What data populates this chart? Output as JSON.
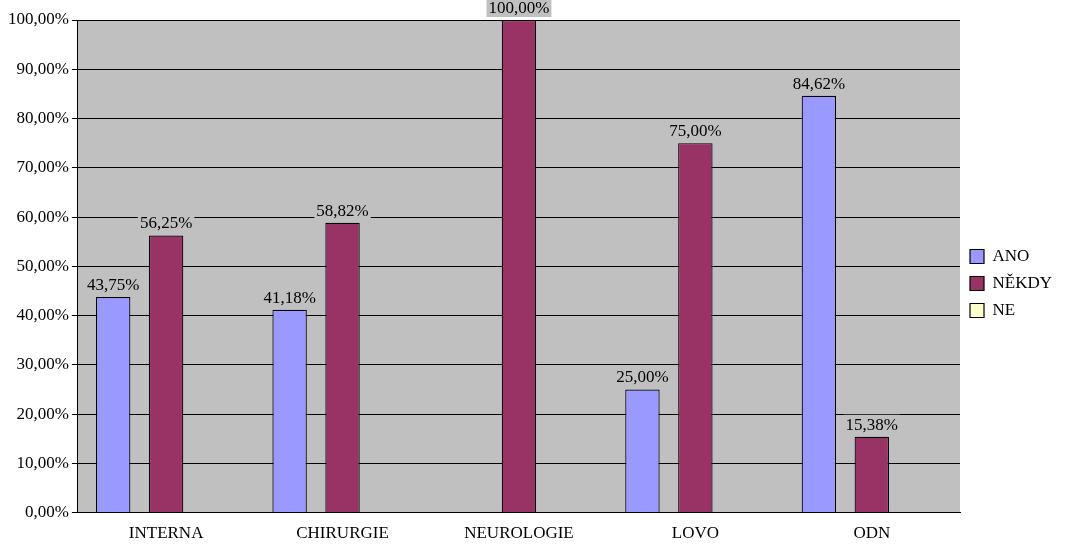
{
  "chart_data": {
    "type": "bar",
    "categories": [
      "INTERNA",
      "CHIRURGIE",
      "NEUROLOGIE",
      "LOVO",
      "ODN"
    ],
    "series": [
      {
        "name": "ANO",
        "color": "#9999ff",
        "values": [
          43.75,
          41.18,
          null,
          25.0,
          84.62
        ],
        "value_labels": [
          "43,75%",
          "41,18%",
          null,
          "25,00%",
          "84,62%"
        ]
      },
      {
        "name": "NĚKDY",
        "color": "#993366",
        "values": [
          56.25,
          58.82,
          100.0,
          75.0,
          15.38
        ],
        "value_labels": [
          "56,25%",
          "58,82%",
          "100,00%",
          "75,00%",
          "15,38%"
        ]
      },
      {
        "name": "NE",
        "color": "#ffffcc",
        "values": [
          null,
          null,
          null,
          null,
          null
        ]
      }
    ],
    "ylim": [
      0,
      100
    ],
    "yticks": [
      {
        "value": 0,
        "label": "0,00%"
      },
      {
        "value": 10,
        "label": "10,00%"
      },
      {
        "value": 20,
        "label": "20,00%"
      },
      {
        "value": 30,
        "label": "30,00%"
      },
      {
        "value": 40,
        "label": "40,00%"
      },
      {
        "value": 50,
        "label": "50,00%"
      },
      {
        "value": 60,
        "label": "60,00%"
      },
      {
        "value": 70,
        "label": "70,00%"
      },
      {
        "value": 80,
        "label": "80,00%"
      },
      {
        "value": 90,
        "label": "90,00%"
      },
      {
        "value": 100,
        "label": "100,00%"
      }
    ],
    "grid": "y",
    "legend": "right"
  }
}
